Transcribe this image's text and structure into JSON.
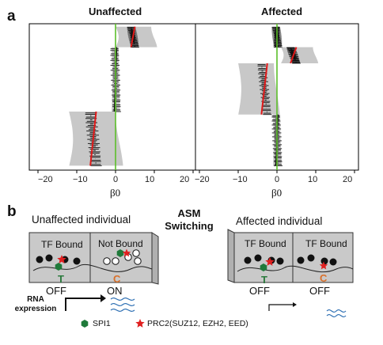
{
  "panel_a": {
    "letter": "a",
    "left_title": "Unaffected",
    "right_title": "Affected",
    "xlabel": "β0",
    "left_ticks": [
      "−20",
      "−10",
      "0",
      "10",
      "20"
    ],
    "right_ticks": [
      "−20",
      "−10",
      "0",
      "10",
      "20"
    ],
    "colors": {
      "reference_line": "#5cbf2a",
      "estimate": "#e01818",
      "ci_band": "#c8c8c8",
      "points": "#111111"
    }
  },
  "chart_data": [
    {
      "type": "scatter",
      "title": "Unaffected",
      "xlabel": "β0",
      "xlim": [
        -23,
        23
      ],
      "ticks": [
        -20,
        -10,
        0,
        10,
        20
      ],
      "reference_line_x": 0,
      "segments": [
        {
          "order": 1,
          "center_range": [
            4,
            5
          ],
          "ci": [
            0,
            10
          ]
        },
        {
          "order": 2,
          "center_range": [
            -0.3,
            0.3
          ],
          "ci": [
            -1,
            1
          ]
        },
        {
          "order": 3,
          "center_range": [
            -6.5,
            -5
          ],
          "ci": [
            -12,
            1
          ]
        }
      ]
    },
    {
      "type": "scatter",
      "title": "Affected",
      "xlabel": "β0",
      "xlim": [
        -23,
        23
      ],
      "ticks": [
        -20,
        -10,
        0,
        10,
        20
      ],
      "reference_line_x": 0,
      "segments": [
        {
          "order": 1,
          "center_range": [
            -0.3,
            0.3
          ],
          "ci": [
            -1,
            1
          ]
        },
        {
          "order": 2,
          "center_range": [
            3.5,
            5
          ],
          "ci": [
            1,
            10
          ]
        },
        {
          "order": 3,
          "center_range": [
            -4,
            -2.5
          ],
          "ci": [
            -10,
            0
          ]
        },
        {
          "order": 4,
          "center_range": [
            -0.3,
            0.3
          ],
          "ci": [
            -1,
            1
          ]
        }
      ]
    }
  ],
  "panel_b": {
    "letter": "b",
    "left_heading": "Unaffected individual",
    "right_heading": "Affected individual",
    "middle_heading_line1": "ASM",
    "middle_heading_line2": "Switching",
    "left_box1_title": "TF Bound",
    "left_box2_title": "Not Bound",
    "right_box1_title": "TF Bound",
    "right_box2_title": "TF Bound",
    "allele_t": "T",
    "allele_c": "C",
    "state_off": "OFF",
    "state_on": "ON",
    "rna_line1": "RNA",
    "rna_line2": "expression",
    "legend_spi1": "SPI1",
    "legend_prc2": "PRC2(SUZ12, EZH2, EED)",
    "colors": {
      "spi1": "#1f7a3a",
      "prc2": "#e02020",
      "allele_t": "#2b7a3d",
      "allele_c": "#d9702a",
      "box": "#c9c9c9",
      "wave": "#2d6fb3"
    }
  }
}
